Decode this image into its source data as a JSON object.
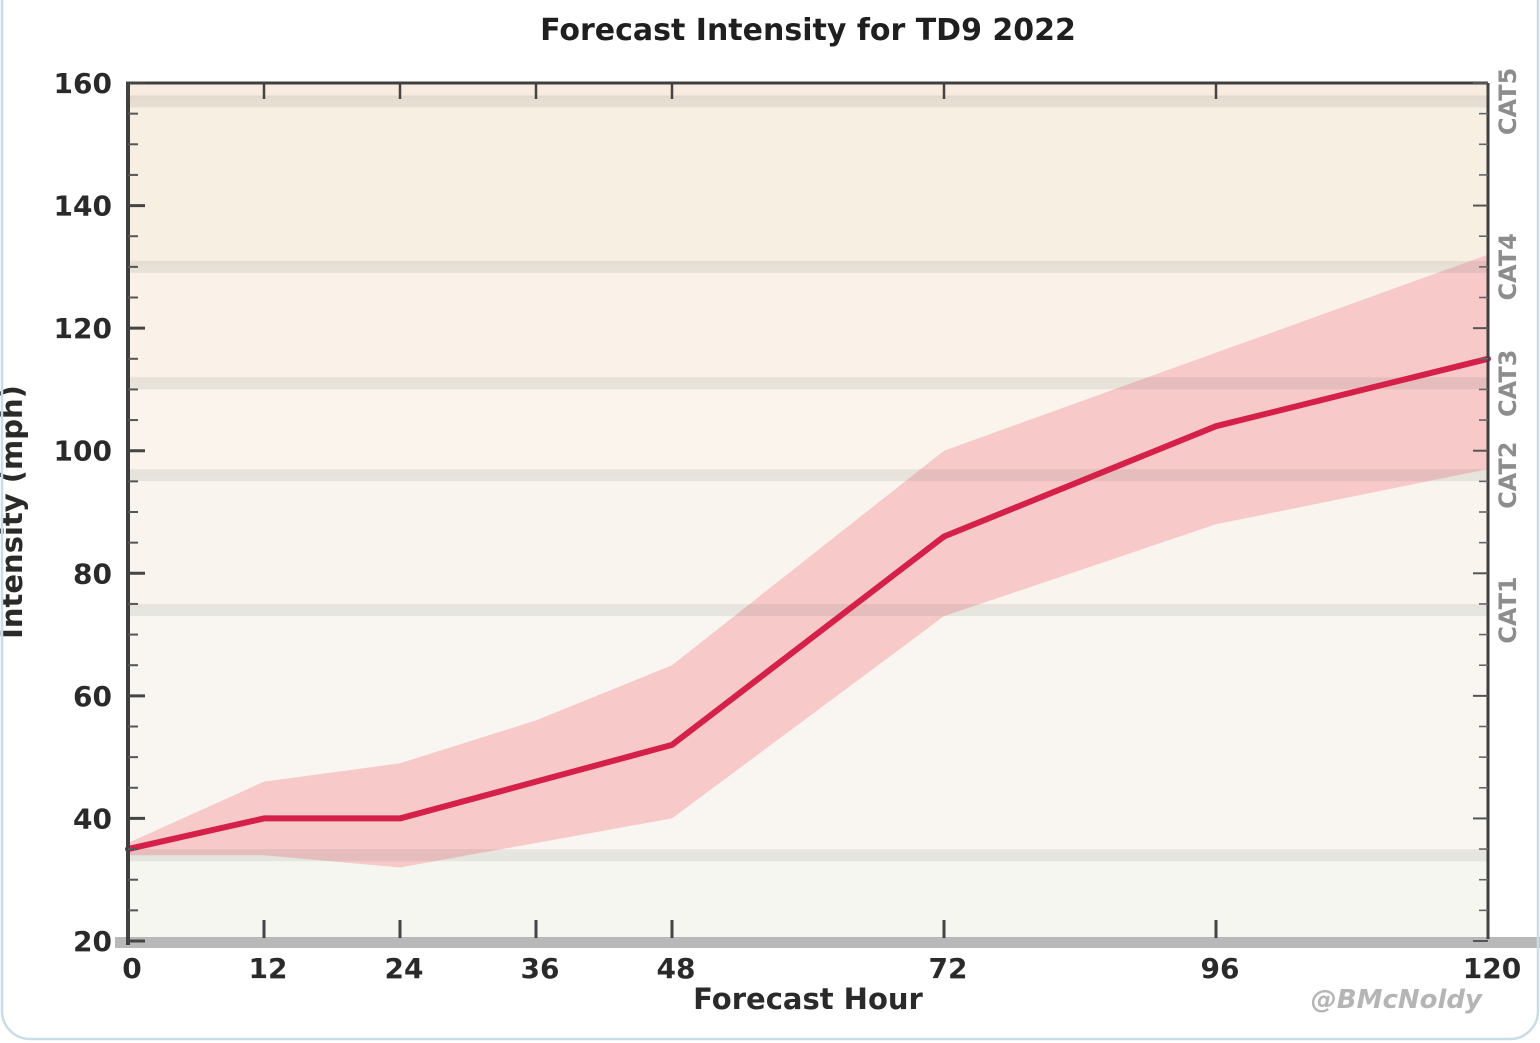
{
  "chart_data": {
    "type": "line",
    "title": "Forecast Intensity for TD9 2022",
    "xlabel": "Forecast Hour",
    "ylabel": "Intensity (mph)",
    "watermark": "@BMcNoldy",
    "x": [
      0,
      12,
      24,
      36,
      48,
      72,
      96,
      120
    ],
    "x_ticks": [
      0,
      12,
      24,
      36,
      48,
      72,
      96,
      120
    ],
    "xlim": [
      0,
      120
    ],
    "ylim": [
      20,
      160
    ],
    "y_ticks": [
      20,
      40,
      60,
      80,
      100,
      120,
      140,
      160
    ],
    "y_minor_tick_step": 5,
    "grid": "category-boundary-stripes-only",
    "legend_position": "none",
    "series": [
      {
        "name": "forecast-intensity",
        "role": "line",
        "values": [
          35,
          40,
          40,
          46,
          52,
          86,
          104,
          115
        ]
      },
      {
        "name": "uncertainty-upper",
        "role": "band-upper",
        "values": [
          36,
          46,
          49,
          56,
          65,
          100,
          116,
          132
        ]
      },
      {
        "name": "uncertainty-lower",
        "role": "band-lower",
        "values": [
          34,
          34,
          32,
          36,
          40,
          73,
          88,
          97
        ]
      }
    ],
    "category_boundaries": [
      {
        "label": "",
        "value": 34
      },
      {
        "label": "CAT1",
        "value": 74
      },
      {
        "label": "CAT2",
        "value": 96
      },
      {
        "label": "CAT3",
        "value": 111
      },
      {
        "label": "CAT4",
        "value": 130
      },
      {
        "label": "CAT5",
        "value": 157
      }
    ],
    "background_bands": [
      {
        "from": 20,
        "to": 34,
        "color": "#f5f6f0"
      },
      {
        "from": 34,
        "to": 74,
        "color": "#f9f6f1"
      },
      {
        "from": 74,
        "to": 96,
        "color": "#f9f5ee"
      },
      {
        "from": 96,
        "to": 111,
        "color": "#faf4ec"
      },
      {
        "from": 111,
        "to": 130,
        "color": "#faf2e8"
      },
      {
        "from": 130,
        "to": 157,
        "color": "#f8efe3"
      },
      {
        "from": 157,
        "to": 160,
        "color": "#f7ecdf"
      }
    ],
    "colors": {
      "line": "#d5204a",
      "band_fill": "#f8c9c9",
      "boundary_stripe": "rgba(100,110,100,0.12)",
      "spine": "#3f3f3f",
      "bottom_bar": "#b8b8b8",
      "card_border": "#c9dde8"
    }
  }
}
